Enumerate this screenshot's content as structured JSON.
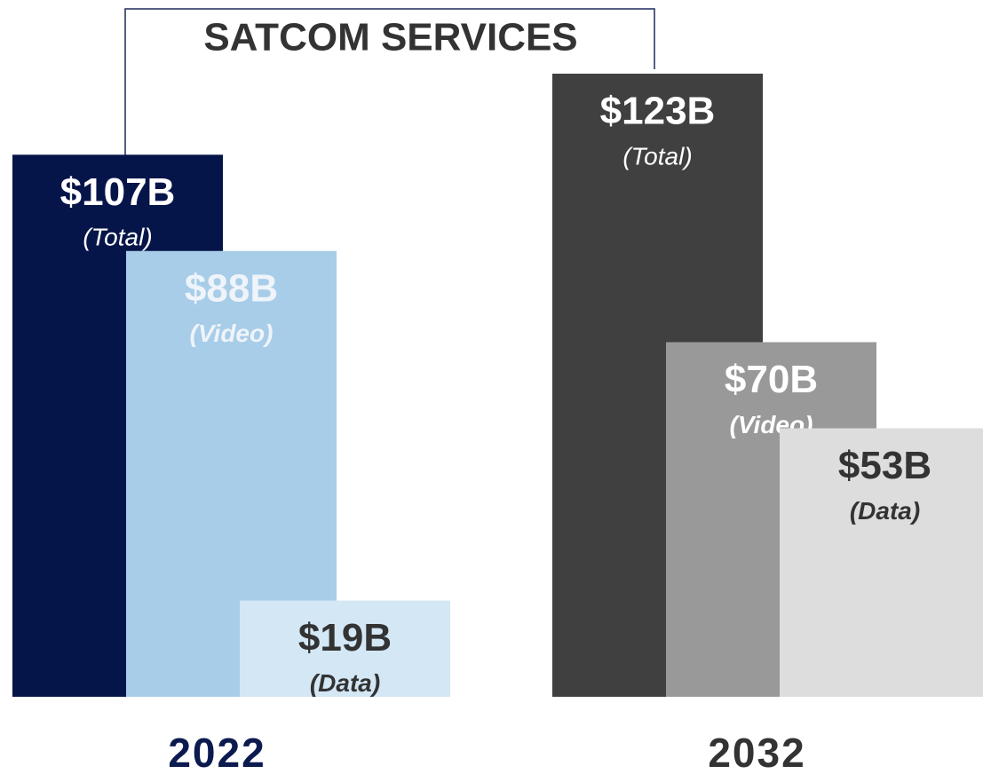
{
  "chart_data": {
    "type": "bar",
    "title": "SATCOM SERVICES",
    "categories": [
      "2022",
      "2032"
    ],
    "category_colors": [
      "#0b1a4f",
      "#333333"
    ],
    "series": [
      {
        "name": "(Total)",
        "values": [
          107,
          123
        ],
        "value_labels": [
          "$107B",
          "$123B"
        ],
        "color": [
          "#061549",
          "#404040"
        ],
        "label_color": [
          "#ffffff",
          "#ffffff"
        ]
      },
      {
        "name": "(Video)",
        "values": [
          88,
          70
        ],
        "value_labels": [
          "$88B",
          "$70B"
        ],
        "color": [
          "#a8cde8",
          "#999999"
        ],
        "label_color": [
          "#eef4fa",
          "#ffffff"
        ]
      },
      {
        "name": "(Data)",
        "values": [
          19,
          53
        ],
        "value_labels": [
          "$19B",
          "$53B"
        ],
        "color": [
          "#d3e7f5",
          "#dddddd"
        ],
        "label_color": [
          "#333333",
          "#333333"
        ]
      }
    ]
  }
}
